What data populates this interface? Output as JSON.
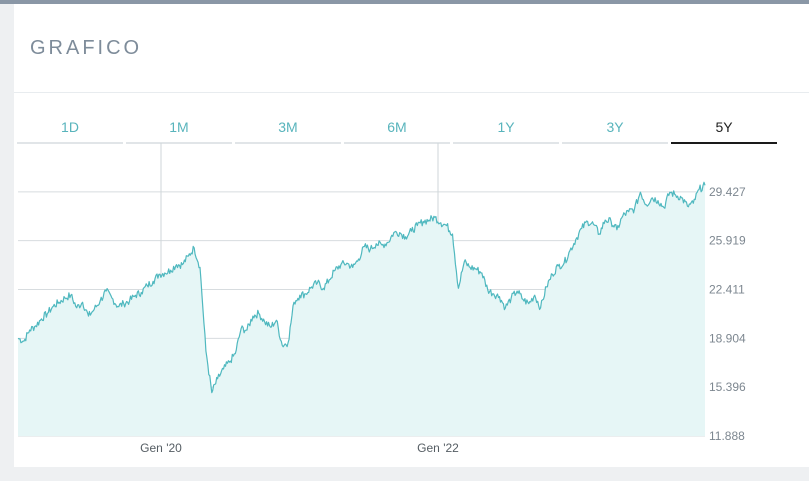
{
  "header": {
    "title": "GRAFICO"
  },
  "tabs": [
    {
      "label": "1D"
    },
    {
      "label": "1M"
    },
    {
      "label": "3M"
    },
    {
      "label": "6M"
    },
    {
      "label": "1Y"
    },
    {
      "label": "3Y"
    },
    {
      "label": "5Y"
    }
  ],
  "active_tab": "5Y",
  "colors": {
    "line": "#4fb8bf",
    "fill": "#e6f6f6",
    "active_tab_underline": "#1a1a1a"
  },
  "chart_data": {
    "type": "area",
    "title": "",
    "xlabel": "",
    "ylabel": "",
    "x_tick_labels": [
      "Gen '20",
      "Gen '22"
    ],
    "y_tick_labels": [
      "29.427",
      "25.919",
      "22.411",
      "18.904",
      "15.396",
      "11.888"
    ],
    "ylim": [
      11.888,
      32.935
    ],
    "grid": true,
    "series": [
      {
        "values": [
          18.9,
          18.7,
          19.5,
          19.8,
          20.3,
          20.7,
          21.2,
          21.5,
          21.8,
          22.0,
          21.1,
          21.5,
          20.5,
          21.0,
          21.6,
          22.3,
          21.8,
          21.2,
          21.4,
          21.6,
          22.0,
          22.2,
          22.7,
          23.0,
          23.5,
          23.6,
          23.8,
          24.2,
          24.2,
          24.8,
          25.4,
          24.0,
          18.0,
          15.0,
          16.0,
          16.7,
          17.2,
          17.8,
          19.6,
          19.5,
          20.5,
          20.7,
          20.1,
          19.7,
          20.2,
          18.4,
          18.6,
          21.5,
          22.0,
          22.1,
          22.6,
          22.9,
          22.5,
          23.1,
          23.8,
          24.2,
          24.3,
          24.0,
          24.6,
          25.5,
          25.3,
          25.7,
          25.6,
          25.8,
          26.5,
          26.5,
          26.2,
          26.6,
          27.0,
          27.3,
          27.4,
          27.6,
          27.2,
          27.0,
          26.4,
          22.5,
          24.4,
          24.0,
          23.9,
          23.6,
          22.4,
          22.1,
          21.9,
          21.1,
          21.8,
          22.3,
          21.7,
          21.4,
          22.0,
          21.1,
          22.6,
          23.5,
          24.1,
          24.3,
          25.2,
          26.0,
          26.8,
          27.3,
          27.1,
          26.4,
          27.4,
          27.3,
          26.7,
          27.7,
          28.0,
          28.2,
          29.4,
          28.5,
          29.0,
          28.8,
          28.3,
          29.4,
          29.2,
          29.0,
          28.4,
          28.6,
          29.6,
          29.9
        ]
      }
    ]
  }
}
